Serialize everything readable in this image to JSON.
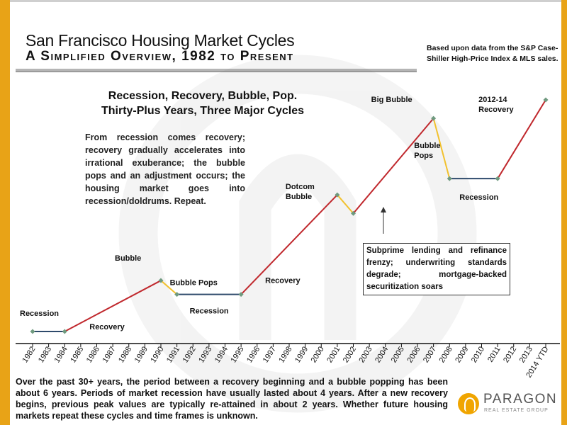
{
  "header": {
    "title": "San Francisco Housing Market Cycles",
    "subtitle": "A Simplified Overview, 1982 to Present",
    "source_note": "Based upon data from the S&P Case-Shiller High-Price Index & MLS sales."
  },
  "headline": {
    "line1": "Recession, Recovery, Bubble, Pop.",
    "line2": "Thirty-Plus Years, Three Major Cycles"
  },
  "intro_text": "From recession comes recovery; recovery gradually accelerates into irrational exuberance; the bubble pops and an adjustment occurs; the housing market goes into recession/doldrums. Repeat.",
  "subprime_box": "Subprime lending and refinance frenzy; underwriting standards degrade; mortgage-backed securitization soars",
  "footer_text": "Over the past 30+ years, the period between a recovery beginning and a bubble popping has been about 6 years. Periods of market recession have usually lasted about 4 years. After a new recovery begins, previous peak values are typically re-attained in about 2 years. Whether future housing markets repeat these cycles and time frames is unknown.",
  "logo": {
    "name": "PARAGON",
    "tagline": "REAL ESTATE GROUP"
  },
  "colors": {
    "recovery": "#c0282d",
    "bubble_pop": "#f2c12e",
    "recession": "#2e4a6b",
    "marker": "#6f9a7f",
    "frame": "#e8a317"
  },
  "chart_data": {
    "type": "line",
    "title": "San Francisco Housing Market Cycles",
    "xlabel": "",
    "ylabel": "",
    "categories": [
      "1982",
      "1983",
      "1984",
      "1985",
      "1986",
      "1987",
      "1988",
      "1989",
      "1990",
      "1991",
      "1992",
      "1993",
      "1994",
      "1995",
      "1996",
      "1997",
      "1998",
      "1999",
      "2000",
      "2001",
      "2002",
      "2003",
      "2004",
      "2005",
      "2006",
      "2007",
      "2008",
      "2009",
      "2010",
      "2011",
      "2012",
      "2013",
      "2014 YTD"
    ],
    "ylim": [
      0,
      100
    ],
    "grid": false,
    "legend": "none",
    "segments": [
      {
        "phase": "recession",
        "from": 0,
        "to": 2,
        "y": [
          0,
          0
        ]
      },
      {
        "phase": "recovery",
        "from": 2,
        "to": 8,
        "y": [
          0,
          22
        ]
      },
      {
        "phase": "bubble_pop",
        "from": 8,
        "to": 9,
        "y": [
          22,
          16
        ]
      },
      {
        "phase": "recession",
        "from": 9,
        "to": 13,
        "y": [
          16,
          16
        ]
      },
      {
        "phase": "recovery",
        "from": 13,
        "to": 19,
        "y": [
          16,
          59
        ]
      },
      {
        "phase": "bubble_pop",
        "from": 19,
        "to": 20,
        "y": [
          59,
          51
        ]
      },
      {
        "phase": "recovery",
        "from": 20,
        "to": 25,
        "y": [
          51,
          92
        ]
      },
      {
        "phase": "bubble_pop",
        "from": 25,
        "to": 26,
        "y": [
          92,
          66
        ]
      },
      {
        "phase": "recession",
        "from": 26,
        "to": 29,
        "y": [
          66,
          66
        ]
      },
      {
        "phase": "recovery",
        "from": 29,
        "to": 32,
        "y": [
          66,
          100
        ]
      }
    ],
    "markers": [
      {
        "x": 0,
        "y": 0
      },
      {
        "x": 2,
        "y": 0
      },
      {
        "x": 8,
        "y": 22
      },
      {
        "x": 9,
        "y": 16
      },
      {
        "x": 13,
        "y": 16
      },
      {
        "x": 19,
        "y": 59
      },
      {
        "x": 20,
        "y": 51
      },
      {
        "x": 25,
        "y": 92
      },
      {
        "x": 26,
        "y": 66
      },
      {
        "x": 29,
        "y": 66
      },
      {
        "x": 32,
        "y": 100
      }
    ],
    "annotations": [
      {
        "id": "recession-1982",
        "lines": [
          "Recession"
        ],
        "x": 0,
        "y": 0
      },
      {
        "id": "recovery-1985",
        "lines": [
          "Recovery"
        ],
        "x": 2,
        "y": 0
      },
      {
        "id": "bubble-1989",
        "lines": [
          "Bubble"
        ],
        "x": 8,
        "y": 22
      },
      {
        "id": "bubble-pops-1991",
        "lines": [
          "Bubble Pops"
        ],
        "x": 9,
        "y": 16
      },
      {
        "id": "recession-1992",
        "lines": [
          "Recession"
        ],
        "x": 9,
        "y": 16
      },
      {
        "id": "recovery-1996",
        "lines": [
          "Recovery"
        ],
        "x": 13,
        "y": 16
      },
      {
        "id": "dotcom-bubble",
        "lines": [
          "Dotcom",
          "Bubble"
        ],
        "x": 19,
        "y": 59
      },
      {
        "id": "big-bubble",
        "lines": [
          "Big Bubble"
        ],
        "x": 25,
        "y": 92
      },
      {
        "id": "bubble-pops-2008",
        "lines": [
          "Bubble",
          "Pops"
        ],
        "x": 26,
        "y": 66
      },
      {
        "id": "recession-2009",
        "lines": [
          "Recession"
        ],
        "x": 26,
        "y": 66
      },
      {
        "id": "recovery-2012-14",
        "lines": [
          "2012-14",
          "Recovery"
        ],
        "x": 29,
        "y": 66
      }
    ]
  }
}
